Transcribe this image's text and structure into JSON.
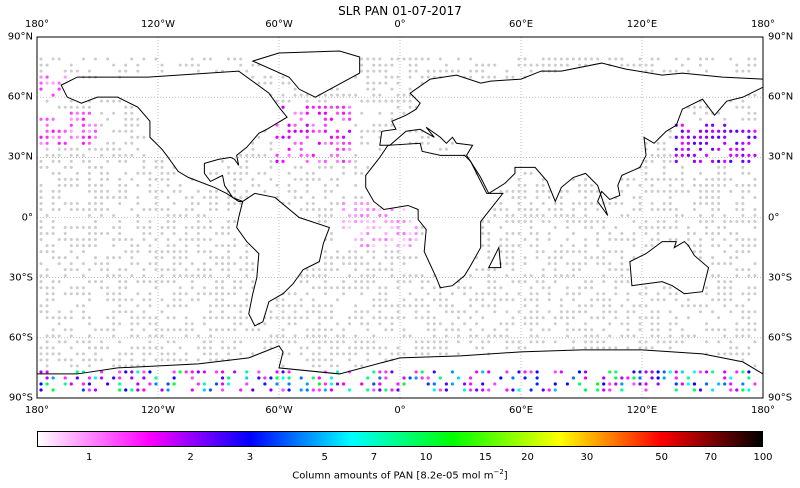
{
  "title": "SLR PAN 01-07-2017",
  "lon_labels": [
    "180°",
    "120°W",
    "60°W",
    "0°",
    "60°E",
    "120°E",
    "180°"
  ],
  "lon_values": [
    -180,
    -120,
    -60,
    0,
    60,
    120,
    180
  ],
  "lat_labels": [
    "90°N",
    "60°N",
    "30°N",
    "0°",
    "30°S",
    "60°S",
    "90°S"
  ],
  "lat_values": [
    90,
    60,
    30,
    0,
    -30,
    -60,
    -90
  ],
  "colorbar": {
    "label_prefix": "Column amounts of PAN [8.2e-05 mol m",
    "label_exp": "−2",
    "label_suffix": "]",
    "range": [
      0.7,
      100
    ],
    "scale": "log",
    "ticks": [
      1,
      2,
      3,
      5,
      7,
      10,
      15,
      20,
      30,
      50,
      70,
      100
    ],
    "tick_labels": [
      "1",
      "2",
      "3",
      "5",
      "7",
      "10",
      "15",
      "20",
      "30",
      "50",
      "70",
      "100"
    ],
    "stops": [
      {
        "v": 0.7,
        "c": "#ffffff"
      },
      {
        "v": 1.5,
        "c": "#ff00ff"
      },
      {
        "v": 3,
        "c": "#0000ff"
      },
      {
        "v": 6,
        "c": "#00ffff"
      },
      {
        "v": 12,
        "c": "#00ff00"
      },
      {
        "v": 25,
        "c": "#ffff00"
      },
      {
        "v": 50,
        "c": "#ff0000"
      },
      {
        "v": 100,
        "c": "#000000"
      }
    ]
  },
  "colors": {
    "no_data_dot": "#cccccc",
    "coast": "#000000",
    "grid": "#999999"
  },
  "observation_grid_deg": 3,
  "value_regions": [
    {
      "name": "NW Pacific",
      "lon": [
        135,
        178
      ],
      "lat": [
        28,
        46
      ],
      "v": [
        1.5,
        2.5
      ]
    },
    {
      "name": "N Atlantic",
      "lon": [
        -62,
        -25
      ],
      "lat": [
        28,
        55
      ],
      "v": [
        1.0,
        1.8
      ]
    },
    {
      "name": "NE Pacific",
      "lon": [
        -180,
        -150
      ],
      "lat": [
        35,
        52
      ],
      "v": [
        0.9,
        1.5
      ]
    },
    {
      "name": "Tropical Atlantic",
      "lon": [
        -30,
        10
      ],
      "lat": [
        -15,
        8
      ],
      "v": [
        0.8,
        1.1
      ]
    },
    {
      "name": "Siberia",
      "lon": [
        -180,
        -160
      ],
      "lat": [
        60,
        72
      ],
      "v": [
        0.9,
        1.3
      ]
    },
    {
      "name": "Antarctica",
      "lon": [
        -180,
        180
      ],
      "lat": [
        -88,
        -76
      ],
      "v": [
        1.2,
        12
      ]
    }
  ]
}
